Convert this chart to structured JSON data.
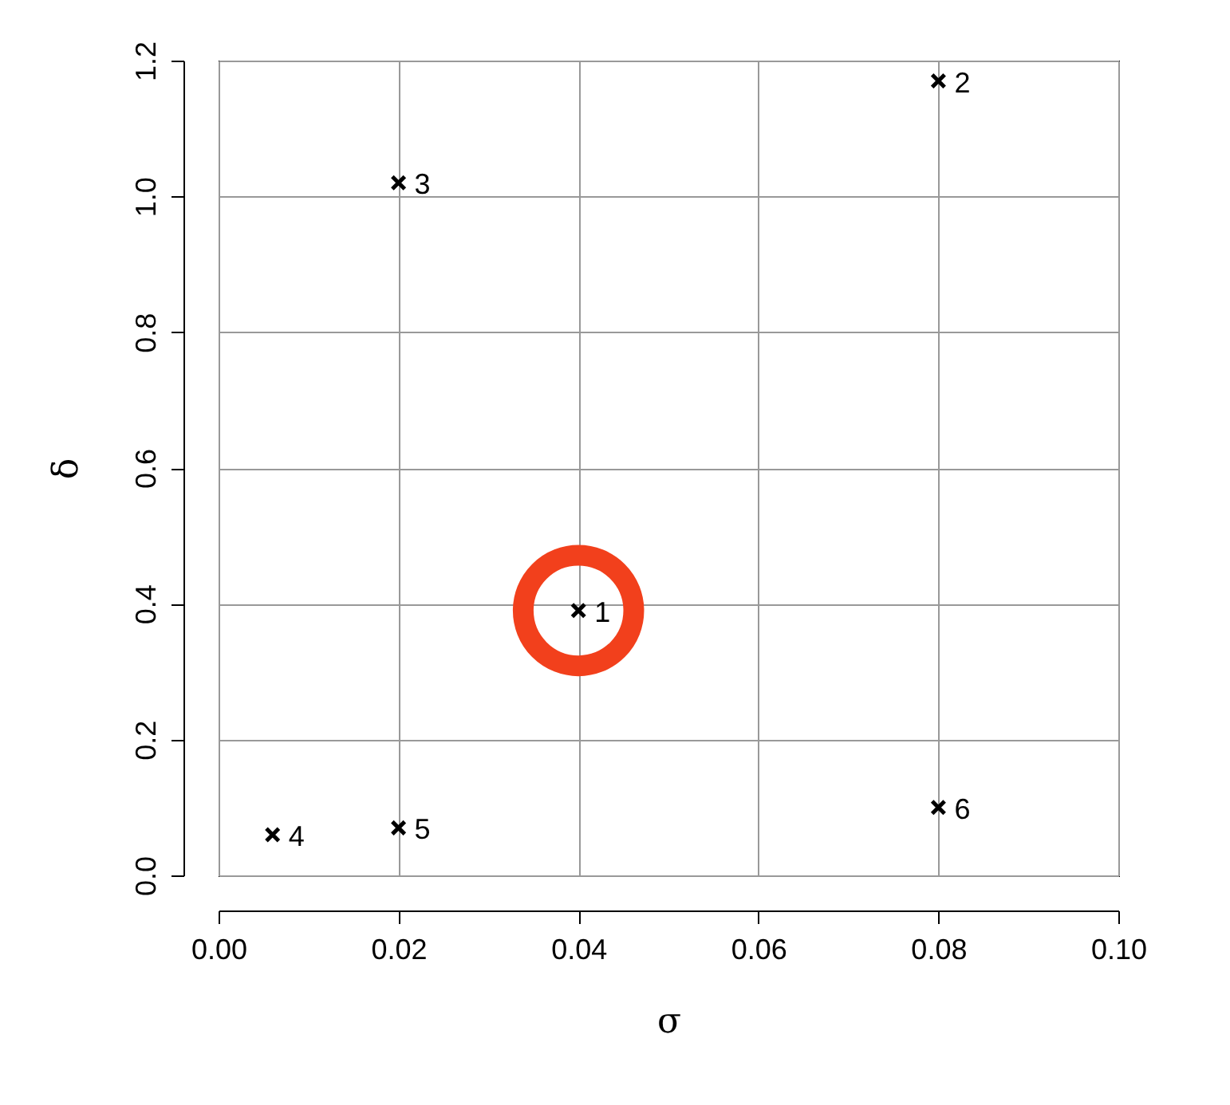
{
  "chart_data": {
    "type": "scatter",
    "xlabel": "σ",
    "ylabel": "δ",
    "xlim": [
      0,
      0.1
    ],
    "ylim": [
      0,
      1.2
    ],
    "xticks": [
      {
        "value": 0,
        "label": "0.00"
      },
      {
        "value": 0.02,
        "label": "0.02"
      },
      {
        "value": 0.04,
        "label": "0.04"
      },
      {
        "value": 0.06,
        "label": "0.06"
      },
      {
        "value": 0.08,
        "label": "0.08"
      },
      {
        "value": 0.1,
        "label": "0.10"
      }
    ],
    "yticks": [
      {
        "value": 0,
        "label": "0.0"
      },
      {
        "value": 0.2,
        "label": "0.2"
      },
      {
        "value": 0.4,
        "label": "0.4"
      },
      {
        "value": 0.6,
        "label": "0.6"
      },
      {
        "value": 0.8,
        "label": "0.8"
      },
      {
        "value": 1.0,
        "label": "1.0"
      },
      {
        "value": 1.2,
        "label": "1.2"
      }
    ],
    "grid": true,
    "marker": "cross",
    "series": [
      {
        "x": [
          0.04,
          0.08,
          0.02,
          0.006,
          0.02,
          0.08
        ],
        "values": [
          0.39,
          1.17,
          1.02,
          0.06,
          0.07,
          0.1
        ],
        "color": "#000000"
      },
      {
        "x": [
          0.04
        ],
        "values": [
          0.39
        ],
        "color": "#f2401c",
        "marker": "circle"
      }
    ],
    "annotations": [
      {
        "text": "1",
        "x": 0.04,
        "y": 0.39
      },
      {
        "text": "2",
        "x": 0.08,
        "y": 1.17
      },
      {
        "text": "3",
        "x": 0.02,
        "y": 1.02
      },
      {
        "text": "4",
        "x": 0.006,
        "y": 0.06
      },
      {
        "text": "5",
        "x": 0.02,
        "y": 0.07
      },
      {
        "text": "6",
        "x": 0.08,
        "y": 0.1
      }
    ]
  }
}
